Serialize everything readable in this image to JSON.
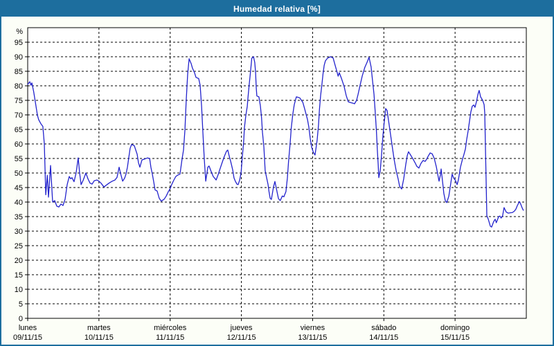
{
  "window": {
    "title": "Humedad relativa [%]"
  },
  "colors": {
    "header_bg": "#1d6e9e",
    "frame_border": "#1d6e9e",
    "page_bg": "#fcfef7",
    "plot_bg": "#ffffff",
    "grid": "#000000",
    "text": "#000000",
    "line": "#2222cc"
  },
  "chart_data": {
    "type": "line",
    "title": "Humedad relativa [%]",
    "unit_label": "%",
    "ylim": [
      0,
      100
    ],
    "yticks": [
      0,
      5,
      10,
      15,
      20,
      25,
      30,
      35,
      40,
      45,
      50,
      55,
      60,
      65,
      70,
      75,
      80,
      85,
      90,
      95
    ],
    "grid": "dashed",
    "legend": "none",
    "hours_per_day": 24,
    "xlim_hours": [
      0,
      168
    ],
    "x_categories": [
      {
        "name": "lunes",
        "date": "09/11/15"
      },
      {
        "name": "martes",
        "date": "10/11/15"
      },
      {
        "name": "miércoles",
        "date": "11/11/15"
      },
      {
        "name": "jueves",
        "date": "12/11/15"
      },
      {
        "name": "viernes",
        "date": "13/11/15"
      },
      {
        "name": "sábado",
        "date": "14/11/15"
      },
      {
        "name": "domingo",
        "date": "15/11/15"
      }
    ],
    "series": [
      {
        "name": "Humedad relativa [%]",
        "color": "#2222cc",
        "points": [
          [
            0,
            80.5
          ],
          [
            0.7,
            81.4
          ],
          [
            1.1,
            80.2
          ],
          [
            1.4,
            81
          ],
          [
            2,
            78
          ],
          [
            2.6,
            74.3
          ],
          [
            3.3,
            69.8
          ],
          [
            3.7,
            68.3
          ],
          [
            4.4,
            67
          ],
          [
            5.1,
            66
          ],
          [
            5.6,
            60
          ],
          [
            6.1,
            42.5
          ],
          [
            6.6,
            49.2
          ],
          [
            7,
            41.7
          ],
          [
            7.7,
            52.6
          ],
          [
            8.4,
            40
          ],
          [
            9.1,
            40.5
          ],
          [
            9.8,
            38.6
          ],
          [
            10.5,
            38.3
          ],
          [
            11.2,
            39.3
          ],
          [
            11.9,
            38.8
          ],
          [
            12.6,
            41
          ],
          [
            13.3,
            46
          ],
          [
            14,
            48.8
          ],
          [
            14.5,
            48
          ],
          [
            14.9,
            48.4
          ],
          [
            15.6,
            47
          ],
          [
            16.3,
            50
          ],
          [
            17,
            55.2
          ],
          [
            17.5,
            50
          ],
          [
            18,
            46
          ],
          [
            18.7,
            47.5
          ],
          [
            19.6,
            50
          ],
          [
            20.3,
            48
          ],
          [
            21,
            46.5
          ],
          [
            21.7,
            46.2
          ],
          [
            22.4,
            47.3
          ],
          [
            23.3,
            47.6
          ],
          [
            24,
            47.2
          ],
          [
            24.7,
            46.5
          ],
          [
            25.7,
            45.2
          ],
          [
            26.6,
            45.9
          ],
          [
            27.5,
            46.6
          ],
          [
            28.5,
            47.2
          ],
          [
            29.4,
            47.6
          ],
          [
            30.1,
            48.5
          ],
          [
            30.8,
            52
          ],
          [
            31.4,
            49.4
          ],
          [
            32,
            47.2
          ],
          [
            32.7,
            48.3
          ],
          [
            33.1,
            49.6
          ],
          [
            33.6,
            52
          ],
          [
            34.1,
            55.5
          ],
          [
            34.5,
            58.5
          ],
          [
            35,
            59.8
          ],
          [
            35.9,
            59.4
          ],
          [
            36.9,
            56.4
          ],
          [
            37.3,
            53.6
          ],
          [
            37.8,
            52
          ],
          [
            38.5,
            54.5
          ],
          [
            39.4,
            54.8
          ],
          [
            40.4,
            55.2
          ],
          [
            41.1,
            55
          ],
          [
            41.5,
            52
          ],
          [
            42,
            49.6
          ],
          [
            42.5,
            46.8
          ],
          [
            42.9,
            44.2
          ],
          [
            43.6,
            43.8
          ],
          [
            44.3,
            41.3
          ],
          [
            45,
            40.3
          ],
          [
            46,
            41
          ],
          [
            46.7,
            42.1
          ],
          [
            47.4,
            43.6
          ],
          [
            48.1,
            44.8
          ],
          [
            48.5,
            46
          ],
          [
            49.2,
            47.5
          ],
          [
            49.9,
            48.8
          ],
          [
            50.6,
            49.3
          ],
          [
            51.3,
            49.6
          ],
          [
            52,
            54.8
          ],
          [
            52.5,
            57.9
          ],
          [
            53,
            65
          ],
          [
            53.4,
            75
          ],
          [
            53.9,
            84
          ],
          [
            54.4,
            89.3
          ],
          [
            55.1,
            87.6
          ],
          [
            55.5,
            86.1
          ],
          [
            56.2,
            84.5
          ],
          [
            56.7,
            82.9
          ],
          [
            57.6,
            82.5
          ],
          [
            58.1,
            80.2
          ],
          [
            58.6,
            73
          ],
          [
            59,
            64.3
          ],
          [
            59.5,
            54.8
          ],
          [
            60,
            47.2
          ],
          [
            60.7,
            52
          ],
          [
            61.1,
            52.4
          ],
          [
            61.8,
            50.5
          ],
          [
            62.5,
            48.8
          ],
          [
            63.5,
            47.6
          ],
          [
            64.2,
            49.5
          ],
          [
            64.9,
            51.7
          ],
          [
            65.6,
            53.8
          ],
          [
            66.3,
            55.8
          ],
          [
            67,
            57.5
          ],
          [
            67.4,
            57.9
          ],
          [
            67.9,
            55.8
          ],
          [
            68.4,
            54
          ],
          [
            69.1,
            51
          ],
          [
            69.5,
            48.3
          ],
          [
            70,
            47.1
          ],
          [
            70.5,
            46.2
          ],
          [
            70.9,
            46
          ],
          [
            71.4,
            47.5
          ],
          [
            71.9,
            50
          ],
          [
            72.3,
            55.5
          ],
          [
            72.8,
            61.2
          ],
          [
            73,
            65.5
          ],
          [
            73.5,
            69.8
          ],
          [
            74,
            73
          ],
          [
            74.2,
            75.7
          ],
          [
            74.7,
            81
          ],
          [
            75.1,
            85.2
          ],
          [
            75.5,
            89.5
          ],
          [
            76.1,
            90
          ],
          [
            76.5,
            88
          ],
          [
            76.8,
            84.5
          ],
          [
            77,
            79.4
          ],
          [
            77.2,
            76.5
          ],
          [
            77.9,
            76.2
          ],
          [
            78.4,
            73.1
          ],
          [
            78.8,
            69
          ],
          [
            79.1,
            64
          ],
          [
            79.6,
            58.8
          ],
          [
            80,
            50.8
          ],
          [
            80.5,
            48.4
          ],
          [
            81,
            46
          ],
          [
            81.3,
            43.7
          ],
          [
            81.7,
            41.3
          ],
          [
            82.1,
            40.9
          ],
          [
            82.8,
            45.2
          ],
          [
            83.3,
            47.1
          ],
          [
            84,
            43.6
          ],
          [
            84.5,
            41.2
          ],
          [
            85.1,
            40.5
          ],
          [
            85.8,
            42.1
          ],
          [
            86.3,
            41.8
          ],
          [
            87,
            43.6
          ],
          [
            87.5,
            48.3
          ],
          [
            87.9,
            54
          ],
          [
            88.4,
            60
          ],
          [
            88.8,
            65.5
          ],
          [
            89.3,
            70
          ],
          [
            89.8,
            73.5
          ],
          [
            90.5,
            76.2
          ],
          [
            91.2,
            76
          ],
          [
            91.7,
            75.8
          ],
          [
            92.7,
            74.3
          ],
          [
            93.3,
            72.1
          ],
          [
            93.8,
            70.2
          ],
          [
            94.3,
            68.3
          ],
          [
            94.7,
            65.9
          ],
          [
            95.2,
            61.9
          ],
          [
            95.7,
            58.8
          ],
          [
            96.3,
            57
          ],
          [
            96.8,
            56.2
          ],
          [
            97.5,
            61.2
          ],
          [
            98,
            66.7
          ],
          [
            98.3,
            71.9
          ],
          [
            98.7,
            76.7
          ],
          [
            99.2,
            81
          ],
          [
            99.5,
            84
          ],
          [
            99.9,
            87
          ],
          [
            100.3,
            88.6
          ],
          [
            101,
            89.5
          ],
          [
            102,
            90
          ],
          [
            102.9,
            89.6
          ],
          [
            103.6,
            87
          ],
          [
            104.3,
            84.5
          ],
          [
            104.6,
            83.3
          ],
          [
            105,
            84.5
          ],
          [
            105.7,
            82.6
          ],
          [
            106.6,
            79.8
          ],
          [
            107.3,
            76.7
          ],
          [
            108,
            74.5
          ],
          [
            108.9,
            74.2
          ],
          [
            109.7,
            74
          ],
          [
            110.1,
            73.8
          ],
          [
            110.8,
            75
          ],
          [
            111.3,
            77
          ],
          [
            112,
            80.2
          ],
          [
            112.7,
            83.3
          ],
          [
            113.6,
            86.4
          ],
          [
            114.3,
            88
          ],
          [
            115,
            89.8
          ],
          [
            115.7,
            86.5
          ],
          [
            116.2,
            81.7
          ],
          [
            116.7,
            77
          ],
          [
            117.1,
            70.7
          ],
          [
            117.5,
            64.3
          ],
          [
            117.8,
            57.9
          ],
          [
            118.1,
            53
          ],
          [
            118.3,
            48.4
          ],
          [
            118.8,
            50.8
          ],
          [
            119.2,
            56
          ],
          [
            119.7,
            63
          ],
          [
            120.2,
            68
          ],
          [
            120.6,
            72.2
          ],
          [
            121.1,
            71.5
          ],
          [
            121.6,
            68
          ],
          [
            122,
            65
          ],
          [
            122.7,
            60
          ],
          [
            123.4,
            55
          ],
          [
            124.1,
            51
          ],
          [
            124.8,
            48
          ],
          [
            125.3,
            45.5
          ],
          [
            126,
            44.5
          ],
          [
            126.7,
            48
          ],
          [
            127.4,
            53
          ],
          [
            127.9,
            56
          ],
          [
            128.3,
            57.3
          ],
          [
            129,
            56.2
          ],
          [
            129.9,
            54.7
          ],
          [
            130.7,
            53.2
          ],
          [
            131.1,
            52.3
          ],
          [
            131.8,
            51.7
          ],
          [
            132.5,
            53.3
          ],
          [
            133.2,
            54.3
          ],
          [
            133.9,
            54
          ],
          [
            134.4,
            54.7
          ],
          [
            134.9,
            55.7
          ],
          [
            135.6,
            56.9
          ],
          [
            136.3,
            56.6
          ],
          [
            137,
            55
          ],
          [
            137.7,
            52.1
          ],
          [
            138.1,
            49.8
          ],
          [
            138.6,
            47.2
          ],
          [
            139.1,
            49.5
          ],
          [
            139.3,
            51.4
          ],
          [
            139.8,
            47
          ],
          [
            140.2,
            43
          ],
          [
            140.7,
            40.5
          ],
          [
            141.2,
            39.8
          ],
          [
            141.9,
            42
          ],
          [
            142.3,
            44.8
          ],
          [
            143,
            49.6
          ],
          [
            143.5,
            48.3
          ],
          [
            144.2,
            47.3
          ],
          [
            144.7,
            46
          ],
          [
            145.1,
            47.6
          ],
          [
            145.8,
            52
          ],
          [
            146.5,
            54.8
          ],
          [
            147,
            56.4
          ],
          [
            147.5,
            58.3
          ],
          [
            147.9,
            61.5
          ],
          [
            148.4,
            64.5
          ],
          [
            148.9,
            68
          ],
          [
            149.3,
            71
          ],
          [
            149.8,
            73
          ],
          [
            150.3,
            73.4
          ],
          [
            150.7,
            72.6
          ],
          [
            151.2,
            74.5
          ],
          [
            151.7,
            77
          ],
          [
            152.1,
            78.4
          ],
          [
            152.6,
            76.2
          ],
          [
            153.3,
            75
          ],
          [
            153.8,
            73.5
          ],
          [
            154,
            70.6
          ],
          [
            154.2,
            60
          ],
          [
            154.5,
            46
          ],
          [
            154.7,
            35.3
          ],
          [
            155.2,
            34.1
          ],
          [
            155.9,
            31.7
          ],
          [
            156.3,
            31.4
          ],
          [
            157,
            33.3
          ],
          [
            157.5,
            34.1
          ],
          [
            157.9,
            32.9
          ],
          [
            158.7,
            35
          ],
          [
            159.1,
            35.2
          ],
          [
            159.5,
            34.5
          ],
          [
            160,
            35.2
          ],
          [
            160.5,
            38.1
          ],
          [
            161.2,
            36.6
          ],
          [
            161.9,
            36.2
          ],
          [
            162.6,
            36.3
          ],
          [
            163.3,
            36.4
          ],
          [
            164,
            36.9
          ],
          [
            164.5,
            37.6
          ],
          [
            165,
            38.8
          ],
          [
            165.7,
            40.2
          ],
          [
            166.1,
            39.3
          ],
          [
            166.6,
            38
          ],
          [
            167,
            37.2
          ]
        ]
      }
    ]
  }
}
